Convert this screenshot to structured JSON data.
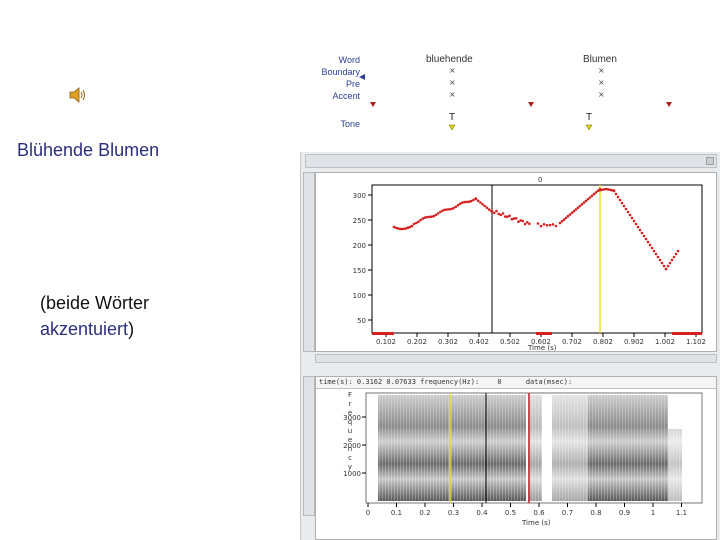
{
  "slide": {
    "title": "Blühende Blumen",
    "note_prefix": "(beide Wörter",
    "note_accent": "akzentuiert",
    "note_suffix": ")",
    "audio_icon": "speaker-icon"
  },
  "tiers": {
    "labels": [
      "Word",
      "Boundary",
      "Pre",
      "Accent",
      "Tone"
    ],
    "words": [
      "bluehende",
      "Blumen"
    ],
    "tones": [
      "T",
      "T"
    ],
    "cross_mark": "×"
  },
  "pitch_pane": {
    "cursor_label": "0",
    "y_ticks": [
      "300",
      "250",
      "200",
      "150",
      "100",
      "50"
    ],
    "x_ticks": [
      "0.102",
      "0.202",
      "0.302",
      "0.402",
      "0.502",
      "0.602",
      "0.702",
      "0.802",
      "0.902",
      "1.002",
      "1.102"
    ],
    "x_label": "Time (s)"
  },
  "spectro_pane": {
    "header_time": "time(s): 0.3162 0.07633",
    "header_freq": "frequency(Hz):",
    "header_freq_val": "0",
    "header_data": "data(msec):",
    "y_ticks": [
      "3000",
      "2000",
      "1000"
    ],
    "y_label": "Frequency",
    "x_ticks": [
      "0",
      "0.1",
      "0.2",
      "0.3",
      "0.4",
      "0.5",
      "0.6",
      "0.7",
      "0.8",
      "0.9",
      "1",
      "1.1"
    ],
    "x_label": "Time (s)"
  },
  "colors": {
    "title": "#2b2f7a",
    "pitch": "#d42020",
    "cursor_yellow": "#e8e020",
    "marker_red": "#c02020"
  }
}
